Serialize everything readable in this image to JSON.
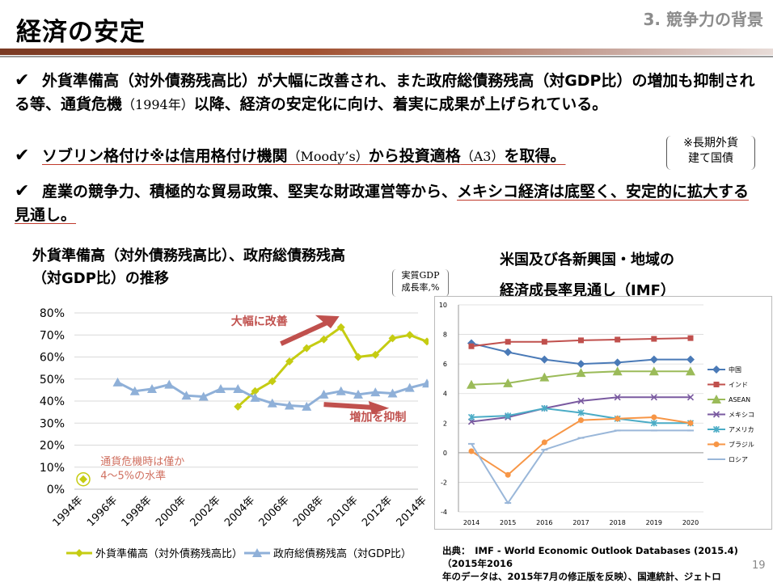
{
  "header": {
    "title": "経済の安定",
    "section": "3. 競争力の背景"
  },
  "bullets": [
    {
      "check": "✔",
      "p1": "外貨準備高（対外債務残高比）が大幅に改善され、また政府総債務残高（対GDP比）の増加も抑制される等、通貨危機",
      "p2": "（1994年）",
      "p3": "以降、経済の安定化に向け、着実に成果が上げられている。"
    },
    {
      "check": "✔",
      "p1": "ソブリン格付け※は信用格付け機関",
      "p2": "（Moody’s）",
      "p3": "から投資適格",
      "p4": "（A3）",
      "p5": "を取得。"
    },
    {
      "check": "✔",
      "p1": "産業の競争力、積極的な貿易政策、堅実な財政運営等から、",
      "p2": "メキシコ経済は底堅く、安定的に拡大する見通し。"
    }
  ],
  "note": {
    "line1": "※長期外貨",
    "line2": "建て国債"
  },
  "left_chart_title": {
    "line1": "外貨準備高（対外債務残高比）、政府総債務残高",
    "line2": "（対GDP比）の推移"
  },
  "right_chart_title": {
    "line1": "米国及び各新興国・地域の",
    "line2": "経済成長率見通し（IMF）"
  },
  "unit_note": {
    "line1": "実質GDP",
    "line2": "成長率,%"
  },
  "source": {
    "line1": "出典：　IMF - World Economic Outlook Databases (2015.4)（2015年2016",
    "line2": "年のデータは、2015年7月の修正版を反映）、国連統計、ジェトロ"
  },
  "page_number": "19",
  "colors": {
    "yellow": "#c5cc12",
    "blue": "#8fb0d8",
    "arrow": "#c0504d"
  },
  "chart_data": [
    {
      "type": "line",
      "title": "外貨準備高（対外債務残高比）、政府総債務残高（対GDP比）の推移",
      "x": [
        1994,
        1995,
        1996,
        1997,
        1998,
        1999,
        2000,
        2001,
        2002,
        2003,
        2004,
        2005,
        2006,
        2007,
        2008,
        2009,
        2010,
        2011,
        2012,
        2013,
        2014
      ],
      "xticks": [
        "1994年",
        "1996年",
        "1998年",
        "2000年",
        "2002年",
        "2004年",
        "2006年",
        "2008年",
        "2010年",
        "2012年",
        "2014年"
      ],
      "yticks": [
        "0%",
        "10%",
        "20%",
        "30%",
        "40%",
        "50%",
        "60%",
        "70%",
        "80%"
      ],
      "ylim": [
        0,
        80
      ],
      "series": [
        {
          "name": "外貨準備高（対外債務残高比）",
          "color": "#c5cc12",
          "marker": "diamond",
          "values": [
            null,
            null,
            null,
            null,
            null,
            null,
            null,
            null,
            null,
            37.5,
            44.5,
            49,
            58,
            64,
            68,
            73.5,
            60,
            61,
            68.5,
            70,
            67
          ]
        },
        {
          "name": "政府総債務残高（対GDP比）",
          "color": "#8fb0d8",
          "marker": "triangle",
          "values": [
            null,
            null,
            48.5,
            44.5,
            45.5,
            47.5,
            42.5,
            42,
            45.5,
            45.5,
            41.5,
            39,
            38,
            37.5,
            43,
            44.5,
            43,
            44,
            43.5,
            46,
            48
          ]
        }
      ],
      "point_1994": {
        "value": 4.5
      },
      "annotations": [
        {
          "text": "大幅に改善"
        },
        {
          "text": "増加を抑制"
        },
        {
          "text_line1": "通貨危機時は僅か",
          "text_line2": "4〜5%の水準"
        }
      ]
    },
    {
      "type": "line",
      "title": "米国及び各新興国・地域の経済成長率見通し（IMF）",
      "x": [
        2014,
        2015,
        2016,
        2017,
        2018,
        2019,
        2020
      ],
      "ylim": [
        -4,
        10
      ],
      "yticks": [
        "10",
        "8",
        "6",
        "4",
        "2",
        "0",
        "-2",
        "-4"
      ],
      "series": [
        {
          "name": "中国",
          "color": "#4a7ab7",
          "marker": "diamond",
          "values": [
            7.4,
            6.8,
            6.3,
            6.0,
            6.1,
            6.3,
            6.3
          ]
        },
        {
          "name": "インド",
          "color": "#c0504d",
          "marker": "square",
          "values": [
            7.2,
            7.5,
            7.5,
            7.6,
            7.65,
            7.7,
            7.75
          ]
        },
        {
          "name": "ASEAN",
          "color": "#9bbb59",
          "marker": "triangle",
          "values": [
            4.6,
            4.7,
            5.1,
            5.4,
            5.5,
            5.5,
            5.5
          ]
        },
        {
          "name": "メキシコ",
          "color": "#7a5aa0",
          "marker": "x",
          "values": [
            2.1,
            2.4,
            3.0,
            3.5,
            3.75,
            3.75,
            3.75
          ]
        },
        {
          "name": "アメリカ",
          "color": "#4bacc6",
          "marker": "star",
          "values": [
            2.4,
            2.5,
            3.0,
            2.7,
            2.3,
            2.0,
            2.0
          ]
        },
        {
          "name": "ブラジル",
          "color": "#f79646",
          "marker": "circle",
          "values": [
            0.1,
            -1.5,
            0.7,
            2.2,
            2.3,
            2.4,
            2.0
          ]
        },
        {
          "name": "ロシア",
          "color": "#9ab7d9",
          "marker": "dash",
          "values": [
            0.6,
            -3.4,
            0.2,
            1.0,
            1.5,
            1.5,
            1.5
          ]
        }
      ]
    }
  ]
}
